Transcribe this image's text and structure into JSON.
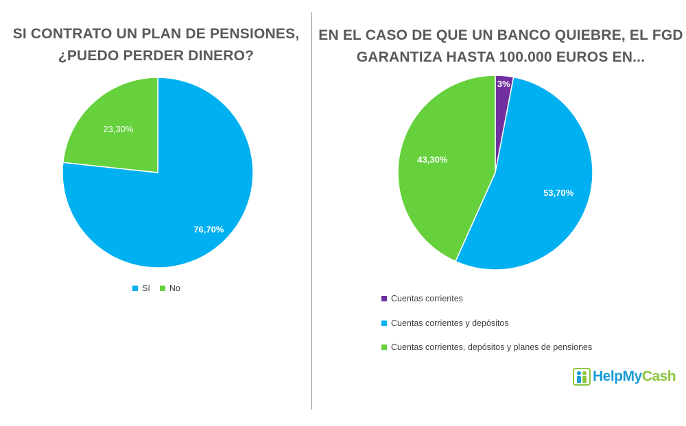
{
  "chart_data": [
    {
      "type": "pie",
      "title": "SI CONTRATO UN PLAN DE PENSIONES, ¿PUEDO PERDER DINERO?",
      "legend_position": "bottom",
      "slices": [
        {
          "label": "Sí",
          "value": 76.7,
          "display": "76,70%",
          "color": "#00b0f0"
        },
        {
          "label": "No",
          "value": 23.3,
          "display": "23,30%",
          "color": "#66d13d"
        }
      ]
    },
    {
      "type": "pie",
      "title": "EN EL CASO DE QUE UN BANCO QUIEBRE, EL FGD GARANTIZA HASTA 100.000 EUROS EN...",
      "legend_position": "bottom",
      "slices": [
        {
          "label": "Cuentas corrientes",
          "value": 3,
          "display": "3%",
          "color": "#7030a0"
        },
        {
          "label": "Cuentas corrientes y depósitos",
          "value": 53.7,
          "display": "53,70%",
          "color": "#00b0f0"
        },
        {
          "label": "Cuentas corrientes, depósitos y planes de pensiones",
          "value": 43.3,
          "display": "43,30%",
          "color": "#66d13d"
        }
      ]
    }
  ],
  "logo": {
    "part1": "Help",
    "part2": "My",
    "part3": "Cash"
  }
}
